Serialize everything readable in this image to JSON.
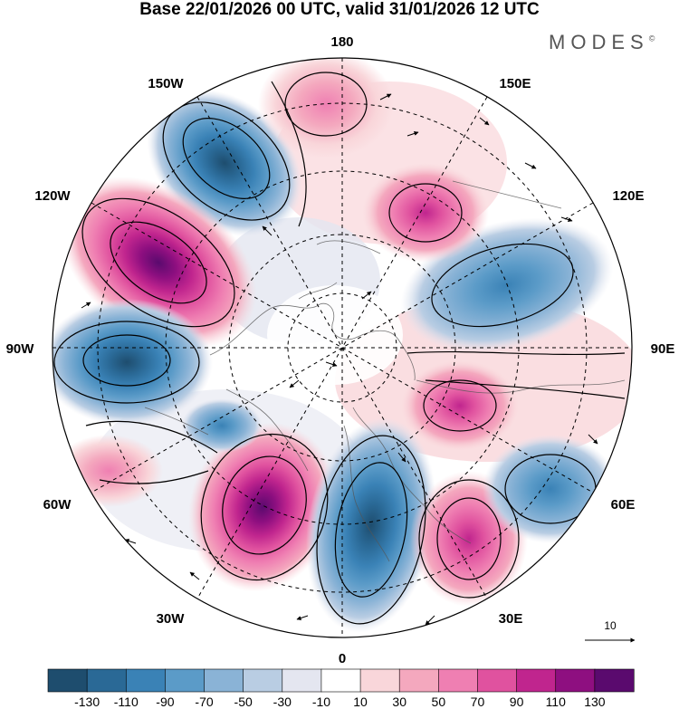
{
  "title": "Base 22/01/2026 00 UTC, valid 31/01/2026 12 UTC",
  "brand": "MODES",
  "brand_mark": "©",
  "lon_labels": {
    "n180": "180",
    "w150": "150W",
    "e150": "150E",
    "w120": "120W",
    "e120": "120E",
    "w90": "90W",
    "e90": "90E",
    "w60": "60W",
    "e60": "60E",
    "w30": "30W",
    "e30": "30E",
    "s0": "0"
  },
  "reference_vector": {
    "value": "10"
  },
  "colorbar": {
    "labels": [
      "-130",
      "-110",
      "-90",
      "-70",
      "-50",
      "-30",
      "-10",
      "10",
      "30",
      "50",
      "70",
      "90",
      "110",
      "130"
    ],
    "colors": [
      "#1e4d6e",
      "#2a6996",
      "#3a82b6",
      "#5b9bc8",
      "#8ab3d6",
      "#b9cde3",
      "#e4e6f0",
      "#ffffff",
      "#f9d6da",
      "#f4a8be",
      "#ef7fb2",
      "#e0529f",
      "#c0258e",
      "#8e0f80",
      "#5a0a6e"
    ]
  },
  "map": {
    "projection": "polar-stereographic-north",
    "field_levels": [
      -130,
      -110,
      -90,
      -70,
      -50,
      -30,
      -10,
      10,
      30,
      50,
      70,
      90,
      110,
      130
    ],
    "anomalies": [
      {
        "name": "gulf-of-alaska-low",
        "polarity": "negative",
        "peak": -110
      },
      {
        "name": "canada-high",
        "polarity": "positive",
        "peak": 130
      },
      {
        "name": "hudson-bay-low",
        "polarity": "negative",
        "peak": -100
      },
      {
        "name": "greenland-west-high",
        "polarity": "positive",
        "peak": 110
      },
      {
        "name": "north-atlantic-low",
        "polarity": "negative",
        "peak": -110
      },
      {
        "name": "scandinavia-high",
        "polarity": "positive",
        "peak": 90
      },
      {
        "name": "ural-low",
        "polarity": "negative",
        "peak": -60
      },
      {
        "name": "siberia-high",
        "polarity": "positive",
        "peak": 70
      },
      {
        "name": "east-siberia-low",
        "polarity": "negative",
        "peak": -70
      },
      {
        "name": "chukotka-high",
        "polarity": "positive",
        "peak": 70
      },
      {
        "name": "bering-high",
        "polarity": "positive",
        "peak": 50
      }
    ]
  }
}
